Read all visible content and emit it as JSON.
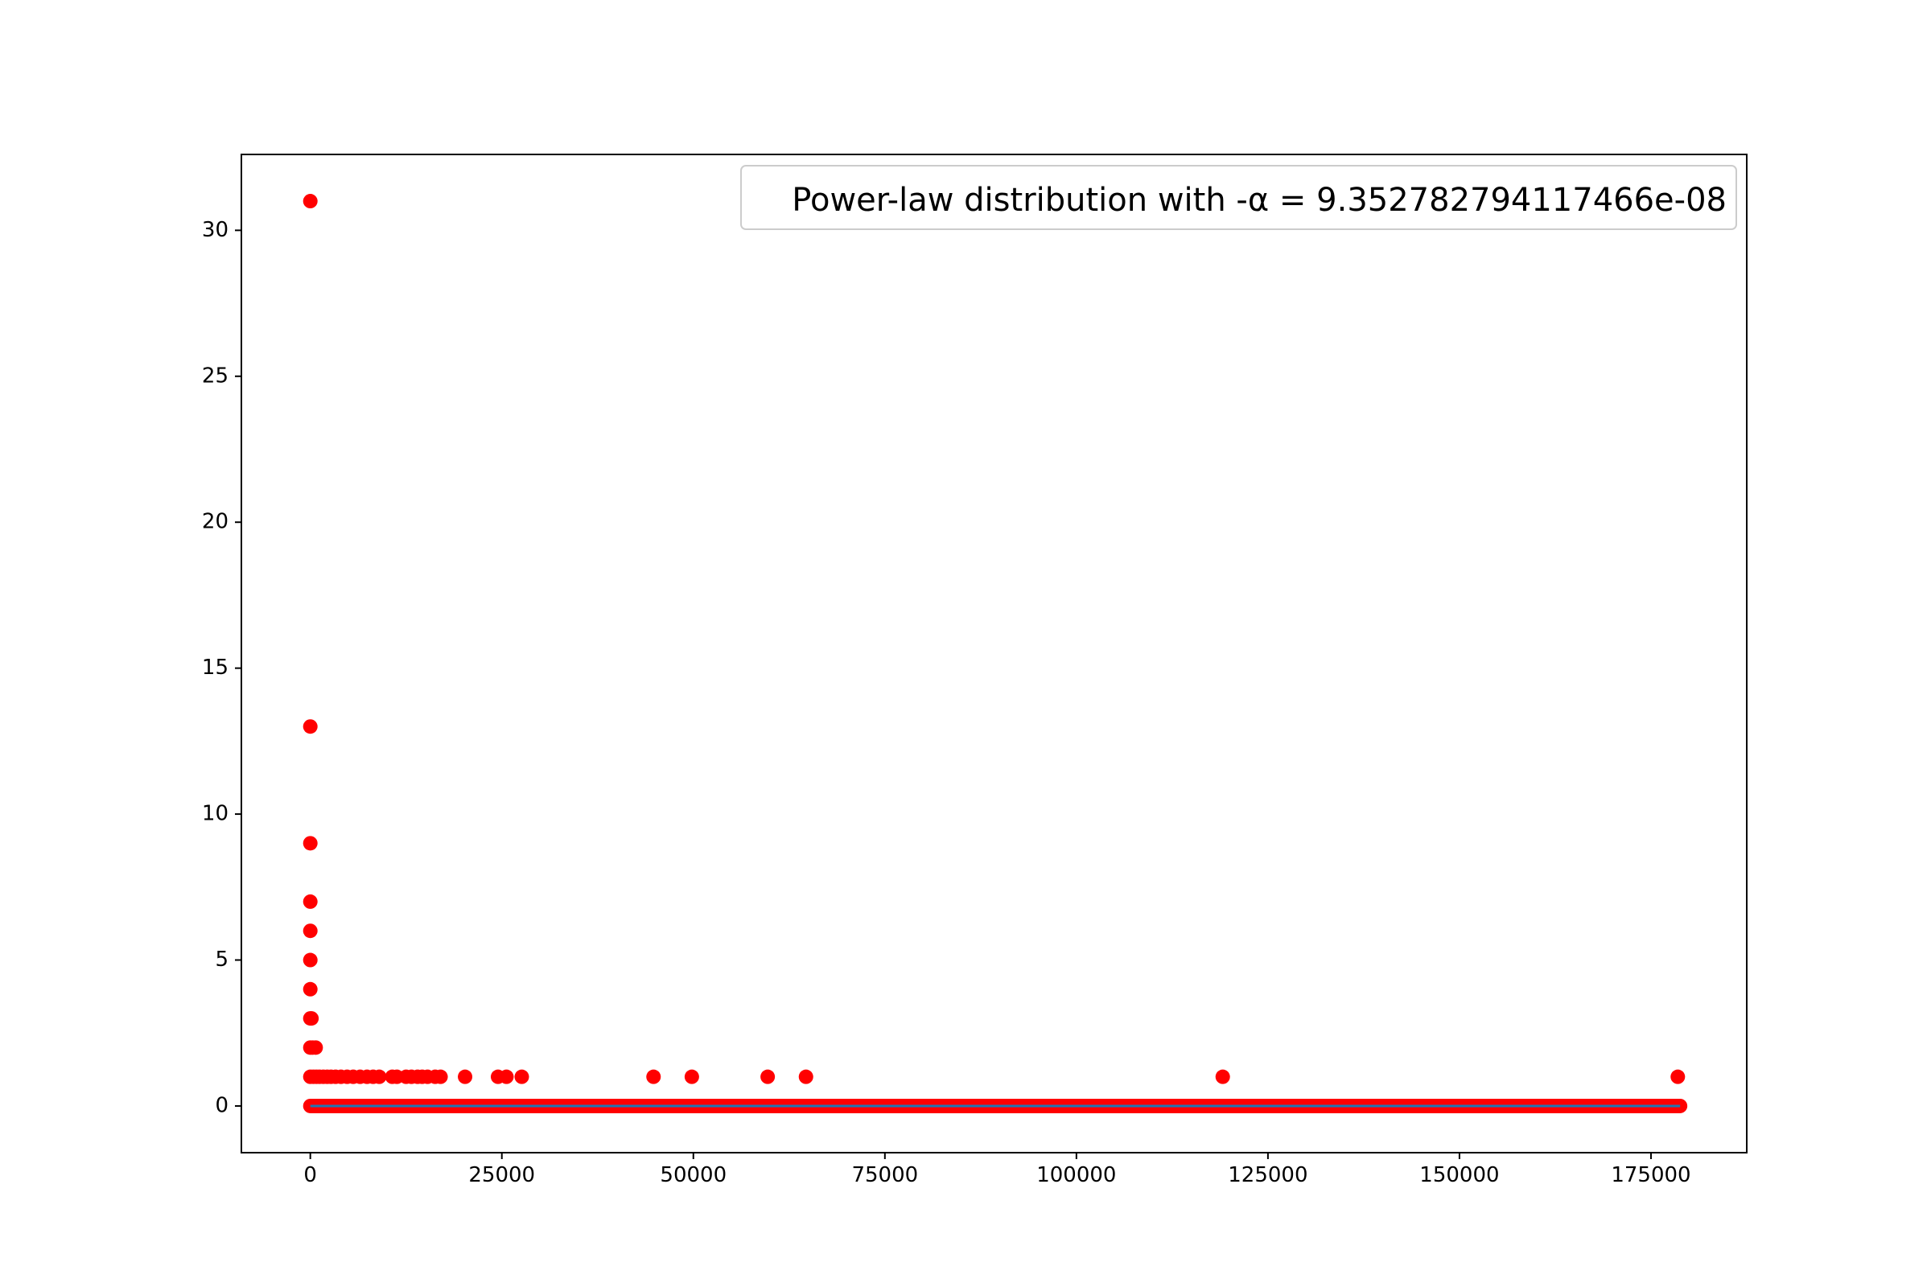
{
  "chart_data": {
    "type": "scatter",
    "title": "",
    "xlabel": "",
    "ylabel": "",
    "xlim": [
      -9000,
      187500
    ],
    "ylim": [
      -1.6,
      32.6
    ],
    "xticks": [
      0,
      25000,
      50000,
      75000,
      100000,
      125000,
      150000,
      175000
    ],
    "xtick_labels": [
      "0",
      "25000",
      "50000",
      "75000",
      "100000",
      "125000",
      "150000",
      "175000"
    ],
    "yticks": [
      0,
      5,
      10,
      15,
      20,
      25,
      30
    ],
    "ytick_labels": [
      "0",
      "5",
      "10",
      "15",
      "20",
      "25",
      "30"
    ],
    "grid": false,
    "legend": {
      "placement": "top-right",
      "entries": [
        "Power-law distribution with -α = 9.352782794117466e-08"
      ]
    },
    "series": [
      {
        "marker": "circle",
        "color": "#ff0000",
        "points": [
          [
            0,
            31
          ],
          [
            0,
            13
          ],
          [
            0,
            9
          ],
          [
            0,
            7
          ],
          [
            0,
            6
          ],
          [
            0,
            5
          ],
          [
            0,
            4
          ],
          [
            0,
            3
          ],
          [
            150,
            3
          ],
          [
            0,
            2
          ],
          [
            300,
            2
          ],
          [
            700,
            2
          ],
          [
            0,
            1
          ],
          [
            400,
            1
          ],
          [
            800,
            1
          ],
          [
            1200,
            1
          ],
          [
            1700,
            1
          ],
          [
            2200,
            1
          ],
          [
            2700,
            1
          ],
          [
            3300,
            1
          ],
          [
            4000,
            1
          ],
          [
            4800,
            1
          ],
          [
            5600,
            1
          ],
          [
            6500,
            1
          ],
          [
            7400,
            1
          ],
          [
            8200,
            1
          ],
          [
            9000,
            1
          ],
          [
            10700,
            1
          ],
          [
            11300,
            1
          ],
          [
            12500,
            1
          ],
          [
            13200,
            1
          ],
          [
            14000,
            1
          ],
          [
            14600,
            1
          ],
          [
            15300,
            1
          ],
          [
            16300,
            1
          ],
          [
            17000,
            1
          ],
          [
            20200,
            1
          ],
          [
            24500,
            1
          ],
          [
            25600,
            1
          ],
          [
            27600,
            1
          ],
          [
            44800,
            1
          ],
          [
            49800,
            1
          ],
          [
            59700,
            1
          ],
          [
            64700,
            1
          ],
          [
            119100,
            1
          ],
          [
            178500,
            1
          ]
        ],
        "dense_band": {
          "x_start": 0,
          "x_end": 178800,
          "y": 0
        }
      },
      {
        "type": "line",
        "color": "#1f77b4",
        "x_start": 0,
        "x_end": 178800,
        "y": 0
      }
    ]
  }
}
